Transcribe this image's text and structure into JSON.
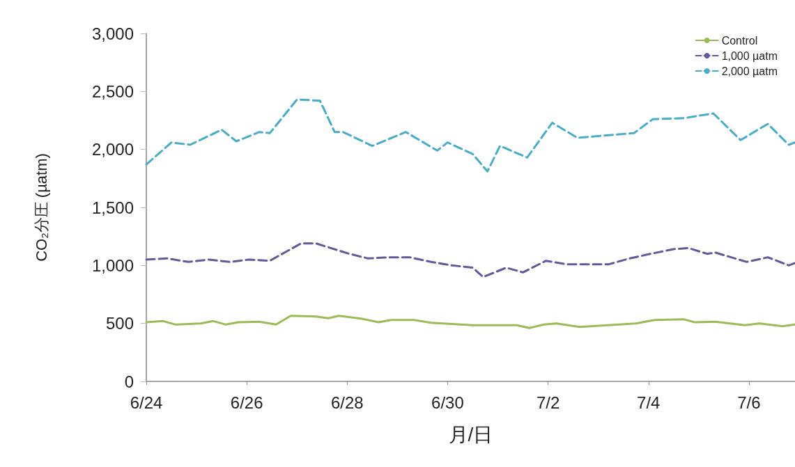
{
  "chart_data": {
    "type": "line",
    "xlabel": "月/日",
    "ylabel": "CO₂分圧 (µatm)",
    "xlim": [
      "--06-24T00:00",
      "--07-06T22:00"
    ],
    "xticks": [
      {
        "value": "--06-24",
        "label": "6/24"
      },
      {
        "value": "--06-26",
        "label": "6/26"
      },
      {
        "value": "--06-28",
        "label": "6/28"
      },
      {
        "value": "--06-30",
        "label": "6/30"
      },
      {
        "value": "--07-02",
        "label": "7/2"
      },
      {
        "value": "--07-04",
        "label": "7/4"
      },
      {
        "value": "--07-06",
        "label": "7/6"
      }
    ],
    "ylim": [
      0,
      3000
    ],
    "yticks": [
      0,
      500,
      {
        "value": 1000,
        "label": "1,000"
      },
      {
        "value": 1500,
        "label": "1,500"
      },
      {
        "value": 2000,
        "label": "2,000"
      },
      {
        "value": 2500,
        "label": "2,500"
      },
      {
        "value": 3000,
        "label": "3,000"
      }
    ],
    "grid": false,
    "legend": "top right",
    "marker": "none",
    "series": [
      {
        "name": "Control",
        "color": "#9bbb59",
        "line_style": "solid",
        "x": [
          "--06-24T00:00",
          "--06-24T08:00",
          "--06-24T14:00",
          "--06-25T02:00",
          "--06-25T08:00",
          "--06-25T14:00",
          "--06-25T20:00",
          "--06-26T06:00",
          "--06-26T14:00",
          "--06-26T21:00",
          "--06-27T09:00",
          "--06-27T15:00",
          "--06-27T20:00",
          "--06-28T07:00",
          "--06-28T15:00",
          "--06-28T21:00",
          "--06-29T08:00",
          "--06-29T16:00",
          "--06-30T12:00",
          "--07-01T09:00",
          "--07-01T15:00",
          "--07-01T22:00",
          "--07-02T04:00",
          "--07-02T15:00",
          "--07-03T18:00",
          "--07-04T03:00",
          "--07-04T17:00",
          "--07-04T22:00",
          "--07-05T08:00",
          "--07-05T22:00",
          "--07-06T05:00",
          "--07-06T16:00",
          "--07-06T22:00"
        ],
        "values": [
          510,
          520,
          490,
          500,
          520,
          490,
          510,
          515,
          490,
          565,
          560,
          545,
          565,
          540,
          510,
          530,
          530,
          505,
          485,
          485,
          460,
          490,
          500,
          470,
          500,
          530,
          535,
          510,
          515,
          485,
          500,
          475,
          490
        ]
      },
      {
        "name": "1,000 µatm",
        "color": "#5f5b9a",
        "line_style": "dashed",
        "x": [
          "--06-24T00:00",
          "--06-24T10:00",
          "--06-24T20:00",
          "--06-25T06:00",
          "--06-25T16:00",
          "--06-26T01:00",
          "--06-26T11:00",
          "--06-27T02:00",
          "--06-27T09:00",
          "--06-28T01:00",
          "--06-28T10:00",
          "--06-28T20:00",
          "--06-29T06:00",
          "--06-29T16:00",
          "--06-30T02:00",
          "--06-30T12:00",
          "--06-30T17:00",
          "--07-01T04:00",
          "--07-01T12:00",
          "--07-01T23:00",
          "--07-02T09:00",
          "--07-03T05:00",
          "--07-03T15:00",
          "--07-04T01:00",
          "--07-04T12:00",
          "--07-04T19:00",
          "--07-05T04:00",
          "--07-05T08:00",
          "--07-05T23:00",
          "--07-06T09:00",
          "--07-06T19:00",
          "--07-06T22:00"
        ],
        "values": [
          1050,
          1060,
          1030,
          1050,
          1030,
          1050,
          1040,
          1190,
          1190,
          1100,
          1060,
          1070,
          1070,
          1030,
          1000,
          980,
          900,
          980,
          940,
          1040,
          1010,
          1010,
          1060,
          1100,
          1140,
          1150,
          1100,
          1110,
          1030,
          1070,
          1000,
          1020
        ]
      },
      {
        "name": "2,000 µatm",
        "color": "#4bacc6",
        "line_style": "dashed",
        "x": [
          "--06-24T00:00",
          "--06-24T12:00",
          "--06-24T21:00",
          "--06-25T12:00",
          "--06-25T19:00",
          "--06-26T06:00",
          "--06-26T11:00",
          "--06-27T00:00",
          "--06-27T11:00",
          "--06-27T18:00",
          "--06-27T22:00",
          "--06-28T12:00",
          "--06-29T04:00",
          "--06-29T19:00",
          "--06-30T00:00",
          "--06-30T12:00",
          "--06-30T19:00",
          "--07-01T01:00",
          "--07-01T14:00",
          "--07-02T02:00",
          "--07-02T14:00",
          "--07-03T17:00",
          "--07-04T02:00",
          "--07-04T17:00",
          "--07-05T07:00",
          "--07-05T20:00",
          "--07-06T09:00",
          "--07-06T19:00",
          "--07-06T22:00"
        ],
        "values": [
          1870,
          2060,
          2040,
          2170,
          2070,
          2150,
          2140,
          2430,
          2420,
          2150,
          2150,
          2030,
          2150,
          1990,
          2060,
          1960,
          1810,
          2030,
          1930,
          2230,
          2100,
          2140,
          2260,
          2270,
          2310,
          2080,
          2220,
          2040,
          2060
        ]
      }
    ]
  }
}
